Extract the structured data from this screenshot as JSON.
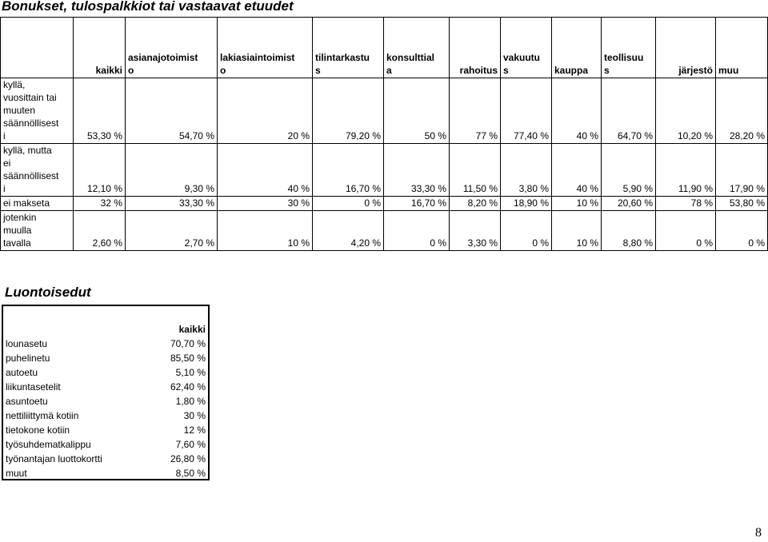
{
  "title": "Bonukset, tulospalkkiot tai vastaavat etuudet",
  "table": {
    "headers": [
      "kaikki",
      "asianajotoimisto",
      "lakiasiaintoimisto",
      "tilintarkastus",
      "konsulttiala",
      "rahoitus",
      "vakuutus",
      "kauppa",
      "teollisuus",
      "järjestö",
      "muu"
    ],
    "header_display": [
      "kaikki",
      "asianajotoimist\no",
      "lakiasiaintoimist\no",
      "tilintarkastu\ns",
      "konsulttial\na",
      "rahoitus",
      "vakuutu\ns",
      "kauppa",
      "teollisuu\ns",
      "järjestö",
      "muu"
    ],
    "rows": [
      {
        "label": "kyllä, vuosittain tai muuten säännöllisesti",
        "label_display": "kyllä,\nvuosittain tai\nmuuten\nsäännöllisest\ni",
        "values": [
          "53,30 %",
          "54,70 %",
          "20 %",
          "79,20 %",
          "50 %",
          "77 %",
          "77,40 %",
          "40 %",
          "64,70 %",
          "10,20 %",
          "28,20 %"
        ]
      },
      {
        "label": "kyllä, mutta ei säännöllisesti",
        "label_display": "kyllä, mutta\nei\nsäännöllisest\ni",
        "values": [
          "12,10 %",
          "9,30 %",
          "40 %",
          "16,70 %",
          "33,30 %",
          "11,50 %",
          "3,80 %",
          "40 %",
          "5,90 %",
          "11,90 %",
          "17,90 %"
        ]
      },
      {
        "label": "ei makseta",
        "label_display": "ei makseta",
        "values": [
          "32 %",
          "33,30 %",
          "30 %",
          "0 %",
          "16,70 %",
          "8,20 %",
          "18,90 %",
          "10 %",
          "20,60 %",
          "78 %",
          "53,80 %"
        ]
      },
      {
        "label": "jotenkin muulla tavalla",
        "label_display": "jotenkin\nmuulla\ntavalla",
        "values": [
          "2,60 %",
          "2,70 %",
          "10 %",
          "4,20 %",
          "0 %",
          "3,30 %",
          "0 %",
          "10 %",
          "8,80 %",
          "0 %",
          "0 %"
        ]
      }
    ]
  },
  "benefits": {
    "title": "Luontoisedut",
    "header": "kaikki",
    "items": [
      {
        "label": "lounasetu",
        "value": "70,70 %"
      },
      {
        "label": "puhelinetu",
        "value": "85,50 %"
      },
      {
        "label": "autoetu",
        "value": "5,10 %"
      },
      {
        "label": "liikuntasetelit",
        "value": "62,40 %"
      },
      {
        "label": "asuntoetu",
        "value": "1,80 %"
      },
      {
        "label": "nettiliittymä kotiin",
        "value": "30 %"
      },
      {
        "label": "tietokone kotiin",
        "value": "12 %"
      },
      {
        "label": "työsuhdematkalippu",
        "value": "7,60 %"
      },
      {
        "label": "työnantajan luottokortti",
        "value": "26,80 %"
      },
      {
        "label": "muut",
        "value": "8,50 %"
      }
    ]
  },
  "page_number": "8"
}
